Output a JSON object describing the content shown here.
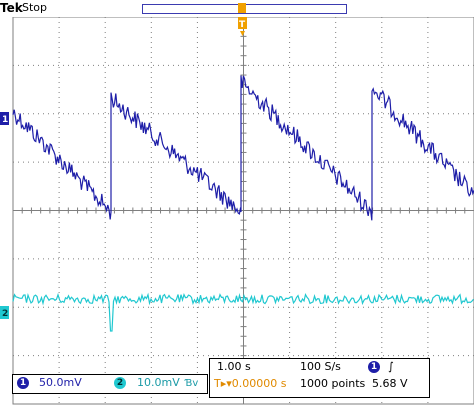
{
  "status": {
    "brand": "Tek",
    "run_state": "Stop"
  },
  "markers": {
    "trigger": "T",
    "ch1": "1",
    "ch2": "2"
  },
  "channels": [
    {
      "number": "1",
      "scale": "50.0mV",
      "color": "#1e1ea8"
    },
    {
      "number": "2",
      "scale": "10.0mV",
      "bandwidth_symbol": "Ɓv",
      "color": "#20c8d0"
    }
  ],
  "acquisition": {
    "timebase": "1.00 s",
    "sample_rate": "100 S/s",
    "trigger_position": "T▸▾0.00000 s",
    "record_length": "1000 points",
    "trigger_level": "5.68 V"
  },
  "trigger": {
    "source": "1",
    "slope_symbol": "∫"
  },
  "colors": {
    "background": "#ffffff",
    "graticule": "#7f7f7f",
    "trace_ch1": "#1e1ea8",
    "trace_ch2": "#20c8d0",
    "trigger_marker": "#f0a000"
  }
}
